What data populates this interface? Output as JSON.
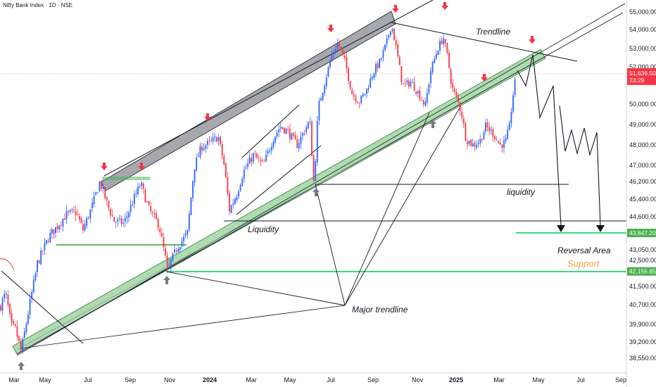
{
  "legend": "Nifty Bank Index · 1D · NSE",
  "chart_data": {
    "type": "candlestick",
    "x_tick_labels": [
      "Mar",
      "May",
      "Jul",
      "Sep",
      "Nov",
      "2024",
      "Mar",
      "May",
      "Jul",
      "Sep",
      "Nov",
      "2025",
      "Mar",
      "May",
      "Jul",
      "Sep"
    ],
    "y_tick_labels": [
      "55,000.00",
      "54,000.00",
      "53,000.00",
      "52,000.00",
      "50,000.00",
      "49,000.00",
      "48,000.00",
      "47,000.00",
      "46,200.00",
      "45,400.00",
      "44,600.00",
      "43,050.00",
      "42,500.00",
      "41,500.00",
      "40,700.00",
      "39,900.00",
      "39,200.00",
      "38,550.00"
    ],
    "ylim": [
      38300,
      55600
    ],
    "current_price": {
      "price": 51636.5,
      "label": "51,636.50",
      "countdown": "23:29",
      "color": "#f23645"
    },
    "level_badges": [
      {
        "label": "43,847.20",
        "price": 43847.2,
        "color": "#4caf50"
      },
      {
        "label": "42,155.85",
        "price": 42155.85,
        "color": "#4caf50"
      }
    ],
    "annotations": [
      {
        "text": "Trendline",
        "style": "normal"
      },
      {
        "text": "liquidity",
        "style": "normal"
      },
      {
        "text": "Liquidity",
        "style": "normal"
      },
      {
        "text": "Major trendline",
        "style": "normal"
      },
      {
        "text": "Reversal Area",
        "style": "normal"
      },
      {
        "text": "Support",
        "style": "support"
      }
    ],
    "colors": {
      "up": "#2962ff",
      "down": "#f23645",
      "channel_dark": "#787b86",
      "channel_green": "#4caf50",
      "support_line": "#00c853",
      "arrow_red": "#f23645",
      "arrow_grey": "#787b86"
    }
  }
}
